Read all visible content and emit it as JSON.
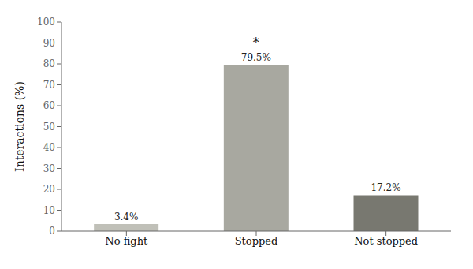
{
  "chart_data": {
    "type": "bar",
    "categories": [
      "No fight",
      "Stopped",
      "Not stopped"
    ],
    "values": [
      3.4,
      79.5,
      17.2
    ],
    "value_labels": [
      "3.4%",
      "79.5%",
      "17.2%"
    ],
    "colors": [
      "#c0c0b8",
      "#a8a8a0",
      "#787870"
    ],
    "ylabel": "Interactions (%)",
    "ylim": [
      0,
      100
    ],
    "yticks": [
      0,
      10,
      20,
      30,
      40,
      50,
      60,
      70,
      80,
      90,
      100
    ],
    "data_labels": true,
    "grid": false,
    "annotations": [
      {
        "text": "*",
        "category": "Stopped"
      }
    ]
  }
}
